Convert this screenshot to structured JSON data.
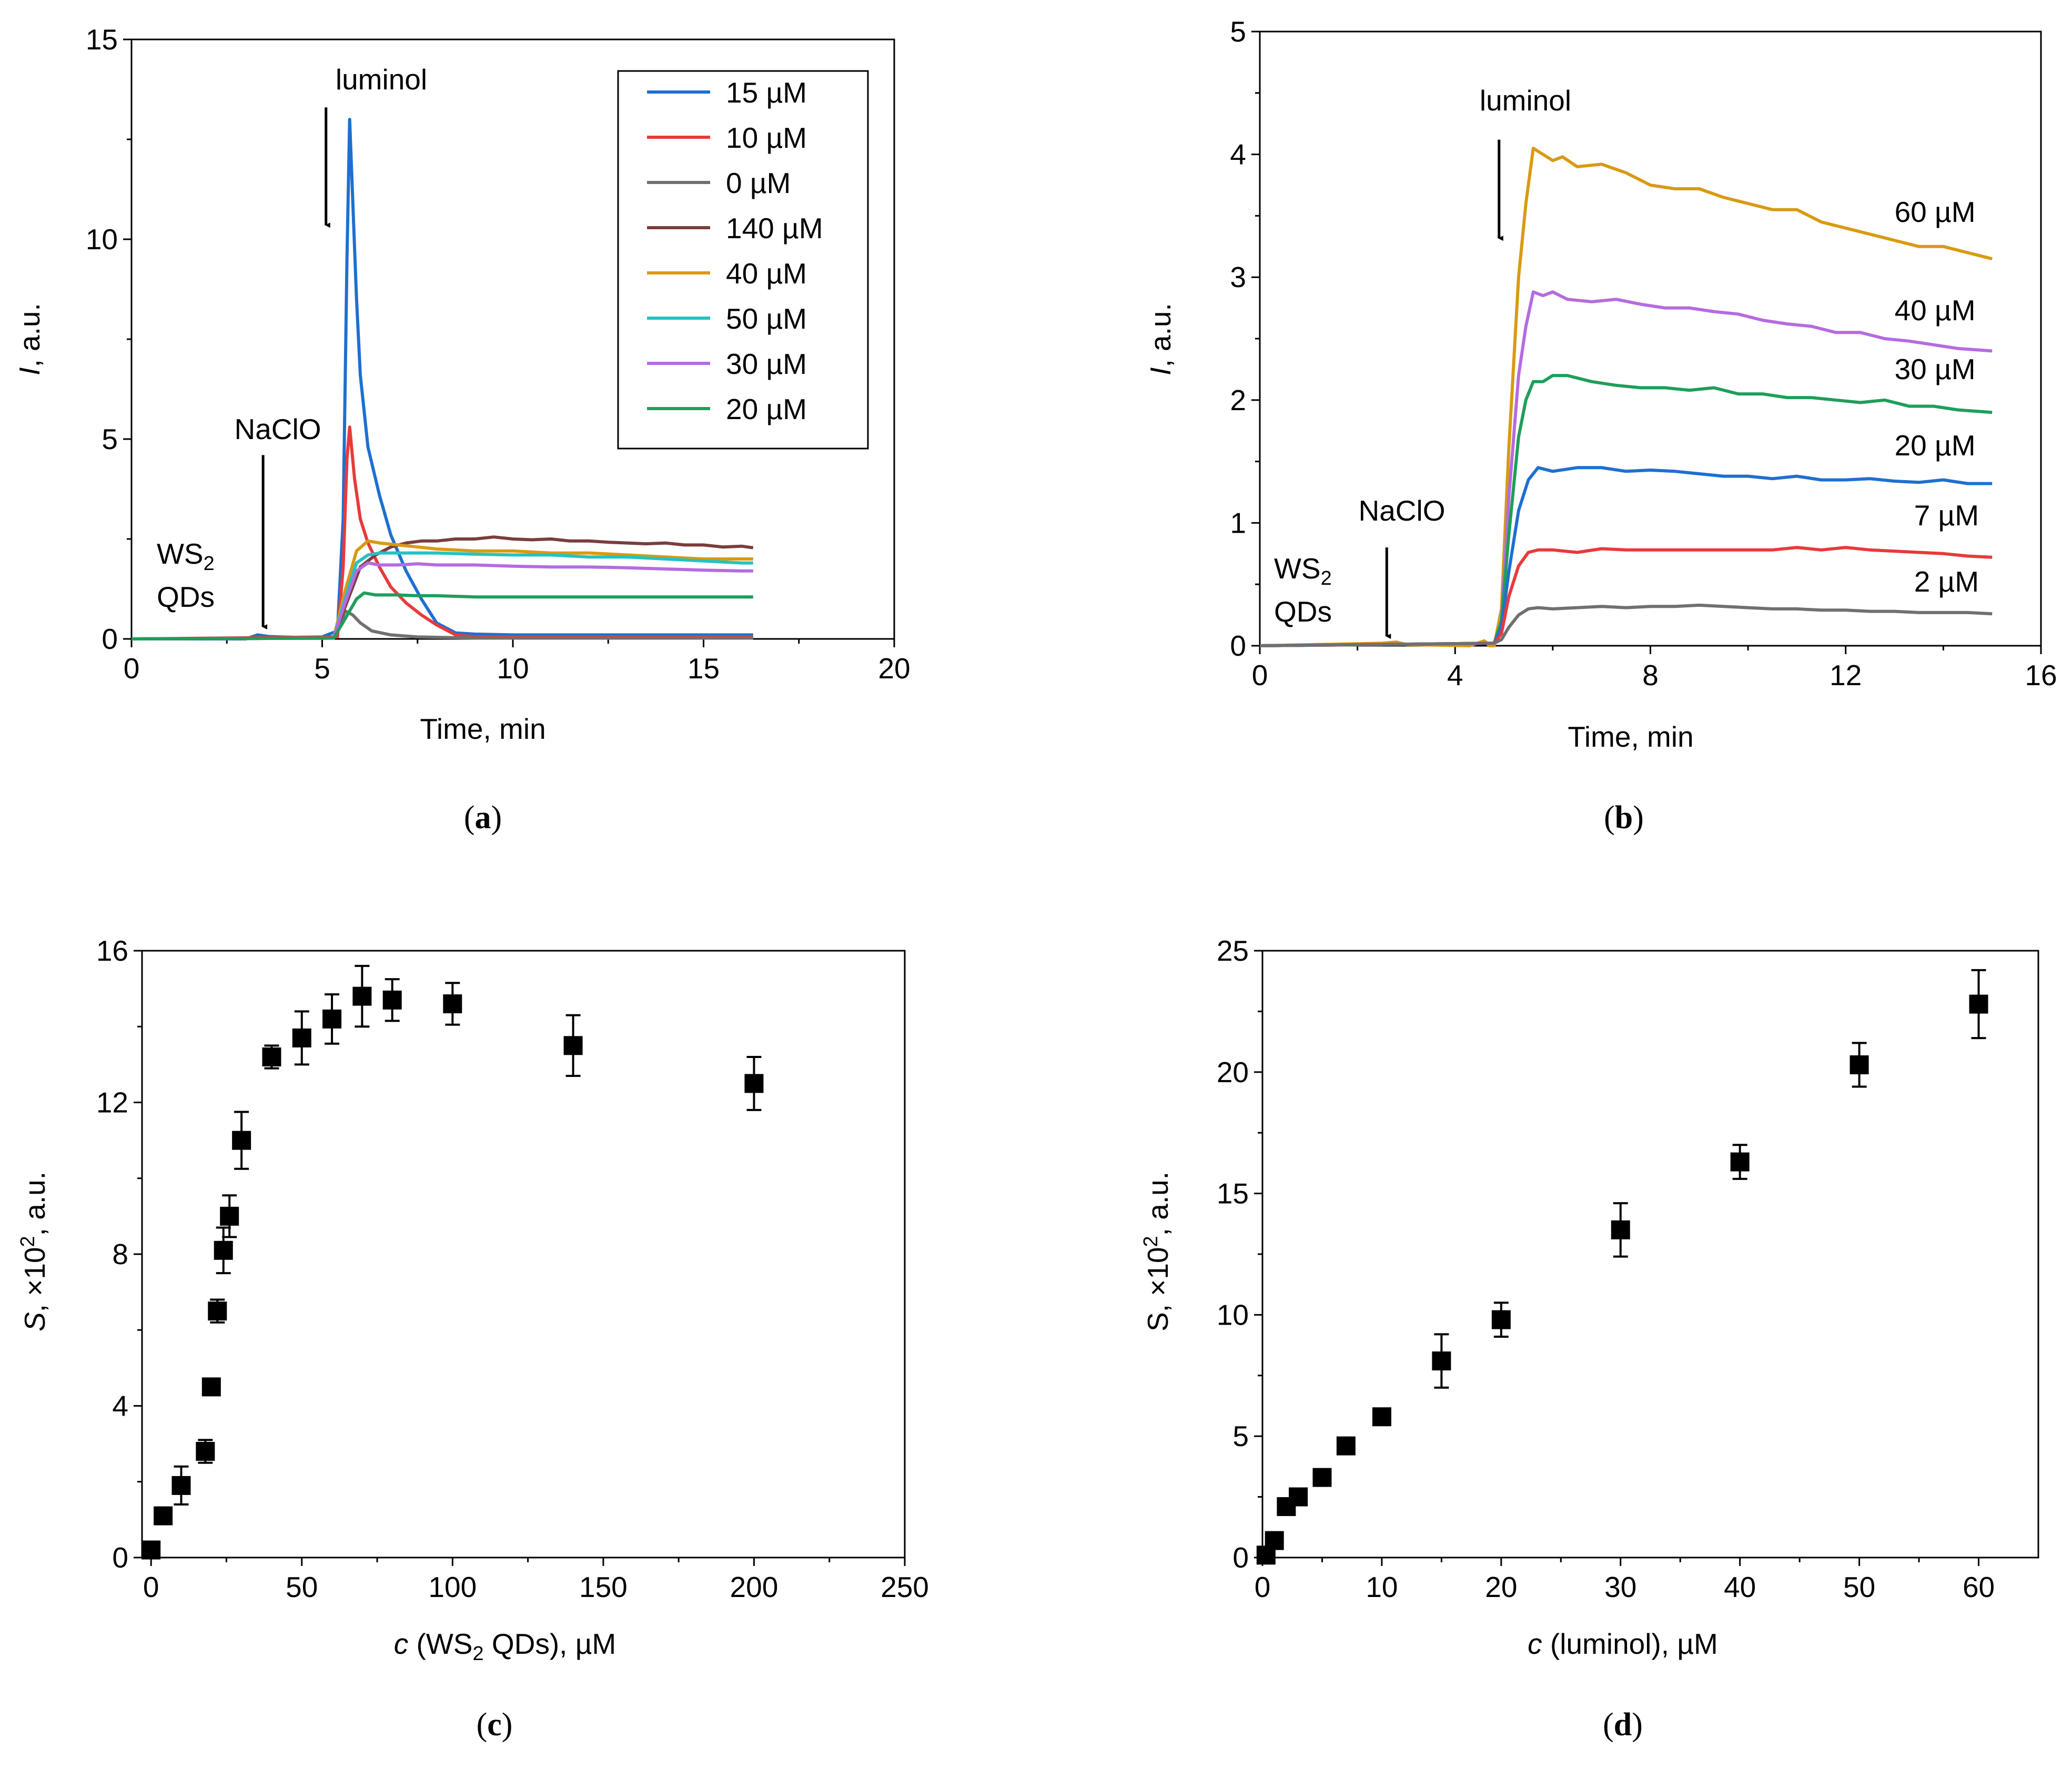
{
  "chart_data": [
    {
      "id": "a",
      "type": "line",
      "caption": "a",
      "xlabel": "Time, min",
      "ylabel_var": "I",
      "ylabel_rest": ", a.u.",
      "xlim": [
        0,
        20
      ],
      "ylim": [
        0,
        15
      ],
      "xticks": [
        0,
        5,
        10,
        15,
        20
      ],
      "yticks": [
        0,
        5,
        10,
        15
      ],
      "grid": false,
      "legend_position": "top-right",
      "series": [
        {
          "name": "15 µM",
          "color": "#1f6fd1",
          "x": [
            0,
            3,
            3.3,
            3.6,
            3.9,
            4.3,
            5.0,
            5.4,
            5.55,
            5.65,
            5.72,
            5.8,
            5.9,
            6.0,
            6.2,
            6.5,
            6.8,
            7.2,
            7.6,
            8.0,
            8.5,
            9.0,
            10,
            11,
            12,
            13,
            14,
            15,
            16.3
          ],
          "y": [
            0,
            0,
            0.1,
            0.06,
            0.05,
            0.04,
            0.05,
            0.2,
            3.0,
            9.5,
            13.0,
            11.0,
            8.5,
            6.6,
            4.8,
            3.6,
            2.6,
            1.7,
            1.0,
            0.4,
            0.15,
            0.12,
            0.1,
            0.1,
            0.1,
            0.1,
            0.1,
            0.1,
            0.1
          ]
        },
        {
          "name": "10 µM",
          "color": "#e83a3a",
          "x": [
            0,
            5.4,
            5.55,
            5.65,
            5.72,
            5.85,
            6.0,
            6.2,
            6.5,
            6.8,
            7.2,
            7.6,
            8.0,
            8.5,
            9.0,
            10,
            12,
            14,
            16.3
          ],
          "y": [
            0,
            0.05,
            1.8,
            4.5,
            5.3,
            4.0,
            3.0,
            2.4,
            1.8,
            1.3,
            0.9,
            0.6,
            0.35,
            0.1,
            0.05,
            0.05,
            0.05,
            0.05,
            0.05
          ]
        },
        {
          "name": "0 µM",
          "color": "#707070",
          "x": [
            0,
            5.3,
            5.45,
            5.6,
            5.8,
            6.0,
            6.3,
            6.8,
            7.5,
            9,
            12,
            16.3
          ],
          "y": [
            0,
            0.02,
            0.3,
            0.7,
            0.6,
            0.4,
            0.2,
            0.1,
            0.05,
            0.02,
            0.02,
            0.02
          ]
        },
        {
          "name": "140 µM",
          "color": "#7b3d3d",
          "x": [
            0,
            5.3,
            5.6,
            6.0,
            6.4,
            6.8,
            7.2,
            7.6,
            8.0,
            8.5,
            9.0,
            9.5,
            10,
            10.5,
            11,
            11.5,
            12,
            12.5,
            13,
            13.5,
            14,
            14.5,
            15,
            15.5,
            16,
            16.3
          ],
          "y": [
            0,
            0.02,
            0.8,
            1.8,
            2.1,
            2.3,
            2.4,
            2.45,
            2.45,
            2.5,
            2.5,
            2.55,
            2.5,
            2.48,
            2.5,
            2.45,
            2.45,
            2.42,
            2.4,
            2.38,
            2.4,
            2.35,
            2.35,
            2.3,
            2.32,
            2.28
          ]
        },
        {
          "name": "40 µM",
          "color": "#d99a12",
          "x": [
            0,
            5.3,
            5.6,
            5.9,
            6.2,
            6.5,
            7.0,
            7.5,
            8.0,
            9,
            10,
            11,
            12,
            13,
            14,
            15,
            16,
            16.3
          ],
          "y": [
            0,
            0.02,
            1.2,
            2.2,
            2.45,
            2.4,
            2.35,
            2.3,
            2.25,
            2.2,
            2.2,
            2.15,
            2.15,
            2.1,
            2.05,
            2.0,
            2.0,
            2.0
          ]
        },
        {
          "name": "50 µM",
          "color": "#22c3c3",
          "x": [
            0,
            5.3,
            5.6,
            5.9,
            6.2,
            6.5,
            7.0,
            7.5,
            8.0,
            9,
            10,
            11,
            12,
            13,
            14,
            15,
            16,
            16.3
          ],
          "y": [
            0,
            0.02,
            1.0,
            1.9,
            2.1,
            2.15,
            2.15,
            2.15,
            2.15,
            2.12,
            2.1,
            2.1,
            2.05,
            2.05,
            2.0,
            1.95,
            1.9,
            1.9
          ]
        },
        {
          "name": "30 µM",
          "color": "#b56be0",
          "x": [
            0,
            5.3,
            5.6,
            5.9,
            6.2,
            6.5,
            7.0,
            7.5,
            8.0,
            9,
            10,
            11,
            12,
            13,
            14,
            15,
            16,
            16.3
          ],
          "y": [
            0,
            0.02,
            0.9,
            1.7,
            1.9,
            1.85,
            1.85,
            1.88,
            1.85,
            1.85,
            1.82,
            1.8,
            1.8,
            1.78,
            1.75,
            1.72,
            1.7,
            1.7
          ]
        },
        {
          "name": "20 µM",
          "color": "#1f9e5a",
          "x": [
            0,
            5.3,
            5.6,
            5.9,
            6.1,
            6.4,
            7.0,
            7.5,
            8.0,
            9,
            10,
            11,
            12,
            13,
            14,
            15,
            16,
            16.3
          ],
          "y": [
            0,
            0.02,
            0.5,
            1.0,
            1.15,
            1.1,
            1.1,
            1.08,
            1.08,
            1.05,
            1.05,
            1.05,
            1.05,
            1.05,
            1.05,
            1.05,
            1.05,
            1.05
          ]
        }
      ],
      "annotations": [
        {
          "label": "luminol",
          "arrow_x": 5.1,
          "arrow_y_top": 13.3,
          "arrow_y_bottom": 10.3
        },
        {
          "label": "NaClO",
          "arrow_x": 3.45,
          "arrow_y_top": 4.6,
          "arrow_y_bottom": 0.25
        },
        {
          "label_main": "WS",
          "label_sub": "2",
          "label_line2": "QDs"
        }
      ]
    },
    {
      "id": "b",
      "type": "line",
      "caption": "b",
      "xlabel": "Time, min",
      "ylabel_var": "I",
      "ylabel_rest": ", a.u.",
      "xlim": [
        0,
        16
      ],
      "ylim": [
        0,
        5
      ],
      "xticks": [
        0,
        4,
        8,
        12,
        16
      ],
      "yticks": [
        0,
        1,
        2,
        3,
        4,
        5
      ],
      "grid": false,
      "series": [
        {
          "name": "60 µM",
          "color": "#d99a12",
          "x": [
            0,
            2.5,
            2.8,
            3.0,
            4.3,
            4.6,
            4.7,
            4.8,
            4.95,
            5.1,
            5.3,
            5.45,
            5.6,
            5.8,
            6.0,
            6.2,
            6.5,
            7.0,
            7.5,
            8.0,
            8.5,
            9.0,
            9.5,
            10,
            10.5,
            11,
            11.5,
            12,
            12.5,
            13,
            13.5,
            14,
            14.5,
            15
          ],
          "y": [
            0,
            0.02,
            0.03,
            0.01,
            0.0,
            0.04,
            0.0,
            0.0,
            0.3,
            1.6,
            3.0,
            3.6,
            4.05,
            4.0,
            3.95,
            3.98,
            3.9,
            3.92,
            3.85,
            3.75,
            3.72,
            3.72,
            3.65,
            3.6,
            3.55,
            3.55,
            3.45,
            3.4,
            3.35,
            3.3,
            3.25,
            3.25,
            3.2,
            3.15
          ]
        },
        {
          "name": "40 µM",
          "color": "#b56be0",
          "x": [
            0,
            4.8,
            4.95,
            5.1,
            5.3,
            5.45,
            5.6,
            5.8,
            6.0,
            6.3,
            6.8,
            7.3,
            7.8,
            8.3,
            8.8,
            9.3,
            9.8,
            10.3,
            10.8,
            11.3,
            11.8,
            12.3,
            12.8,
            13.3,
            13.8,
            14.3,
            15
          ],
          "y": [
            0,
            0.02,
            0.2,
            1.2,
            2.2,
            2.6,
            2.88,
            2.85,
            2.88,
            2.82,
            2.8,
            2.82,
            2.78,
            2.75,
            2.75,
            2.72,
            2.7,
            2.65,
            2.62,
            2.6,
            2.55,
            2.55,
            2.5,
            2.48,
            2.45,
            2.42,
            2.4
          ]
        },
        {
          "name": "30 µM",
          "color": "#1f9e5a",
          "x": [
            0,
            4.8,
            4.95,
            5.1,
            5.3,
            5.45,
            5.6,
            5.8,
            6.0,
            6.3,
            6.8,
            7.3,
            7.8,
            8.3,
            8.8,
            9.3,
            9.8,
            10.3,
            10.8,
            11.3,
            11.8,
            12.3,
            12.8,
            13.3,
            13.8,
            14.3,
            15
          ],
          "y": [
            0,
            0.02,
            0.2,
            0.9,
            1.7,
            2.0,
            2.15,
            2.15,
            2.2,
            2.2,
            2.15,
            2.12,
            2.1,
            2.1,
            2.08,
            2.1,
            2.05,
            2.05,
            2.02,
            2.02,
            2.0,
            1.98,
            2.0,
            1.95,
            1.95,
            1.92,
            1.9
          ]
        },
        {
          "name": "20 µM",
          "color": "#1f6fd1",
          "x": [
            0,
            4.8,
            4.95,
            5.1,
            5.3,
            5.5,
            5.7,
            6.0,
            6.5,
            7.0,
            7.5,
            8.0,
            8.5,
            9.0,
            9.5,
            10,
            10.5,
            11,
            11.5,
            12,
            12.5,
            13,
            13.5,
            14,
            14.5,
            15
          ],
          "y": [
            0,
            0.02,
            0.15,
            0.6,
            1.1,
            1.35,
            1.45,
            1.42,
            1.45,
            1.45,
            1.42,
            1.43,
            1.42,
            1.4,
            1.38,
            1.38,
            1.36,
            1.38,
            1.35,
            1.35,
            1.36,
            1.34,
            1.33,
            1.35,
            1.32,
            1.32
          ]
        },
        {
          "name": "7 µM",
          "color": "#e83a3a",
          "x": [
            0,
            4.8,
            4.95,
            5.1,
            5.3,
            5.5,
            5.7,
            6.0,
            6.5,
            7.0,
            7.5,
            8.0,
            8.5,
            9.0,
            9.5,
            10,
            10.5,
            11,
            11.5,
            12,
            12.5,
            13,
            13.5,
            14,
            14.5,
            15
          ],
          "y": [
            0,
            0.02,
            0.1,
            0.4,
            0.65,
            0.76,
            0.78,
            0.78,
            0.76,
            0.79,
            0.78,
            0.78,
            0.78,
            0.78,
            0.78,
            0.78,
            0.78,
            0.8,
            0.78,
            0.8,
            0.78,
            0.77,
            0.76,
            0.75,
            0.73,
            0.72
          ]
        },
        {
          "name": "2 µM",
          "color": "#707070",
          "x": [
            0,
            4.8,
            4.95,
            5.1,
            5.3,
            5.5,
            5.7,
            6.0,
            6.5,
            7.0,
            7.5,
            8.0,
            8.5,
            9.0,
            9.5,
            10,
            10.5,
            11,
            11.5,
            12,
            12.5,
            13,
            13.5,
            14,
            14.5,
            15
          ],
          "y": [
            0,
            0.02,
            0.05,
            0.15,
            0.25,
            0.3,
            0.31,
            0.3,
            0.31,
            0.32,
            0.31,
            0.32,
            0.32,
            0.33,
            0.32,
            0.31,
            0.3,
            0.3,
            0.29,
            0.29,
            0.28,
            0.28,
            0.27,
            0.27,
            0.27,
            0.26
          ]
        }
      ],
      "series_labels": [
        {
          "text": "60 µM",
          "x": 13.0,
          "y": 3.45
        },
        {
          "text": "40 µM",
          "x": 13.0,
          "y": 2.65
        },
        {
          "text": "30 µM",
          "x": 13.0,
          "y": 2.17
        },
        {
          "text": "20 µM",
          "x": 13.0,
          "y": 1.55
        },
        {
          "text": "7 µM",
          "x": 13.4,
          "y": 0.98
        },
        {
          "text": "2 µM",
          "x": 13.4,
          "y": 0.44
        }
      ],
      "annotations": [
        {
          "label": "luminol",
          "arrow_x": 4.9,
          "arrow_y_top": 4.12,
          "arrow_y_bottom": 3.3
        },
        {
          "label": "NaClO",
          "arrow_x": 2.6,
          "arrow_y_top": 0.8,
          "arrow_y_bottom": 0.06
        },
        {
          "label_main": "WS",
          "label_sub": "2",
          "label_line2": "QDs"
        }
      ]
    },
    {
      "id": "c",
      "type": "scatter",
      "caption": "c",
      "xlabel_var": "c",
      "xlabel_pre": " (WS",
      "xlabel_sub": "2",
      "xlabel_post": " QDs), µM",
      "ylabel_var": "S",
      "ylabel_pre": ", ×10",
      "ylabel_sup": "2",
      "ylabel_post": ", a.u.",
      "xlim": [
        -3,
        250
      ],
      "ylim": [
        0,
        16
      ],
      "xticks": [
        0,
        50,
        100,
        150,
        200,
        250
      ],
      "yticks": [
        0,
        4,
        8,
        12,
        16
      ],
      "grid": false,
      "marker": "square",
      "points": [
        {
          "x": 0,
          "y": 0.2,
          "err": 0.1
        },
        {
          "x": 4,
          "y": 1.1,
          "err": 0.1
        },
        {
          "x": 10,
          "y": 1.9,
          "err": 0.5
        },
        {
          "x": 18,
          "y": 2.8,
          "err": 0.3
        },
        {
          "x": 20,
          "y": 4.5,
          "err": 0.1
        },
        {
          "x": 22,
          "y": 6.5,
          "err": 0.3
        },
        {
          "x": 24,
          "y": 8.1,
          "err": 0.6
        },
        {
          "x": 26,
          "y": 9.0,
          "err": 0.55
        },
        {
          "x": 30,
          "y": 11.0,
          "err": 0.75
        },
        {
          "x": 40,
          "y": 13.2,
          "err": 0.3
        },
        {
          "x": 50,
          "y": 13.7,
          "err": 0.7
        },
        {
          "x": 60,
          "y": 14.2,
          "err": 0.65
        },
        {
          "x": 70,
          "y": 14.8,
          "err": 0.8
        },
        {
          "x": 80,
          "y": 14.7,
          "err": 0.55
        },
        {
          "x": 100,
          "y": 14.6,
          "err": 0.55
        },
        {
          "x": 140,
          "y": 13.5,
          "err": 0.8
        },
        {
          "x": 200,
          "y": 12.5,
          "err": 0.7
        }
      ]
    },
    {
      "id": "d",
      "type": "scatter",
      "caption": "d",
      "xlabel_var": "c",
      "xlabel_pre": " (luminol), µM",
      "xlabel_sub": "",
      "xlabel_post": "",
      "ylabel_var": "",
      "ylabel_pre": "S, ×10",
      "ylabel_sup": "2",
      "ylabel_post": ", a.u.",
      "xlim": [
        0,
        65
      ],
      "ylim": [
        0,
        25
      ],
      "xticks": [
        0,
        10,
        20,
        30,
        40,
        50,
        60
      ],
      "yticks": [
        0,
        5,
        10,
        15,
        20,
        25
      ],
      "grid": false,
      "marker": "square",
      "points": [
        {
          "x": 0.3,
          "y": 0.1,
          "err": 0.05
        },
        {
          "x": 1,
          "y": 0.7,
          "err": 0.1
        },
        {
          "x": 2,
          "y": 2.1,
          "err": 0.3
        },
        {
          "x": 3,
          "y": 2.5,
          "err": 0.2
        },
        {
          "x": 5,
          "y": 3.3,
          "err": 0.2
        },
        {
          "x": 7,
          "y": 4.6,
          "err": 0.2
        },
        {
          "x": 10,
          "y": 5.8,
          "err": 0.2
        },
        {
          "x": 15,
          "y": 8.1,
          "err": 1.1
        },
        {
          "x": 20,
          "y": 9.8,
          "err": 0.7
        },
        {
          "x": 30,
          "y": 13.5,
          "err": 1.1
        },
        {
          "x": 40,
          "y": 16.3,
          "err": 0.7
        },
        {
          "x": 50,
          "y": 20.3,
          "err": 0.9
        },
        {
          "x": 60,
          "y": 22.8,
          "err": 1.4
        }
      ]
    }
  ]
}
